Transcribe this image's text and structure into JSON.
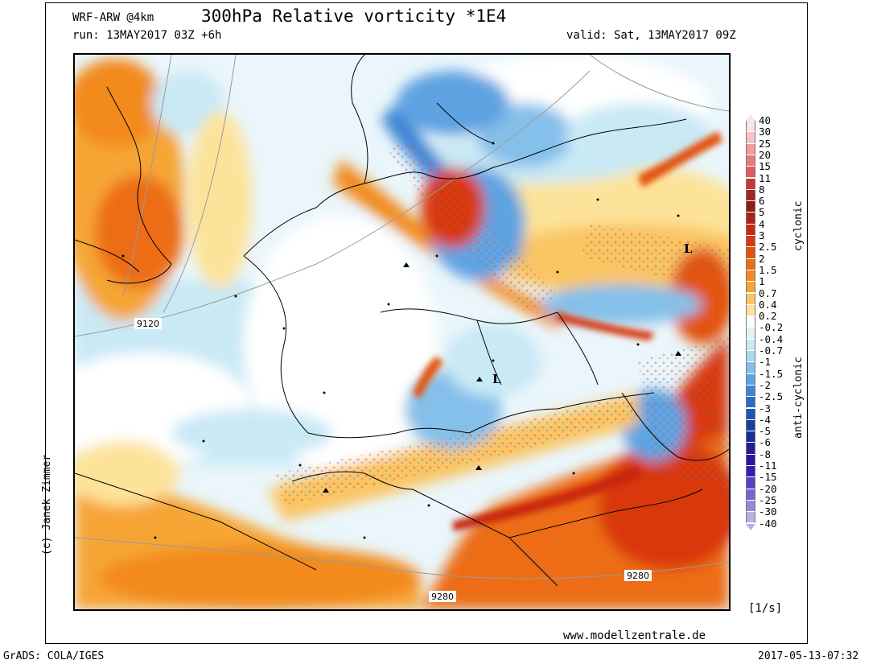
{
  "header": {
    "model": "WRF-ARW @4km",
    "title": "300hPa Relative vorticity *1E4",
    "run": "run: 13MAY2017 03Z +6h",
    "valid": "valid: Sat, 13MAY2017 09Z"
  },
  "map": {
    "contour_labels": [
      "9120",
      "9280",
      "9280"
    ],
    "low_markers": [
      "L",
      "L"
    ]
  },
  "colorbar": {
    "levels": [
      "40",
      "30",
      "25",
      "20",
      "15",
      "11",
      "8",
      "6",
      "5",
      "4",
      "3",
      "2.5",
      "2",
      "1.5",
      "1",
      "0.7",
      "0.4",
      "0.2",
      "-0.2",
      "-0.4",
      "-0.7",
      "-1",
      "-1.5",
      "-2",
      "-2.5",
      "-3",
      "-4",
      "-5",
      "-6",
      "-8",
      "-11",
      "-15",
      "-20",
      "-25",
      "-30",
      "-40"
    ],
    "colors": [
      "#fbe4e6",
      "#f5c2c6",
      "#f09da2",
      "#ea7a80",
      "#e05a5e",
      "#c83836",
      "#a62323",
      "#8e1a1a",
      "#b11e14",
      "#c9280f",
      "#d9390c",
      "#e3530d",
      "#ec6d14",
      "#f28a1d",
      "#f6a535",
      "#fac563",
      "#fde39a",
      "#ffffff",
      "#e3f3f9",
      "#c9e9f5",
      "#a8d8f0",
      "#85c0ea",
      "#5ea3e2",
      "#3e85d6",
      "#2b6bc9",
      "#1e55b8",
      "#1740a0",
      "#16309a",
      "#211d92",
      "#2c14a0",
      "#3a1bb0",
      "#5b3fc2",
      "#7b62d0",
      "#9b86de",
      "#bcaeea"
    ],
    "label_cyclonic": "cyclonic",
    "label_anticyclonic": "anti-cyclonic",
    "unit": "[1/s]"
  },
  "footer": {
    "copyright": "(c) Janek Zimmer",
    "website": "www.modellzentrale.de",
    "software": "GrADS: COLA/IGES",
    "timestamp": "2017-05-13-07:32"
  }
}
